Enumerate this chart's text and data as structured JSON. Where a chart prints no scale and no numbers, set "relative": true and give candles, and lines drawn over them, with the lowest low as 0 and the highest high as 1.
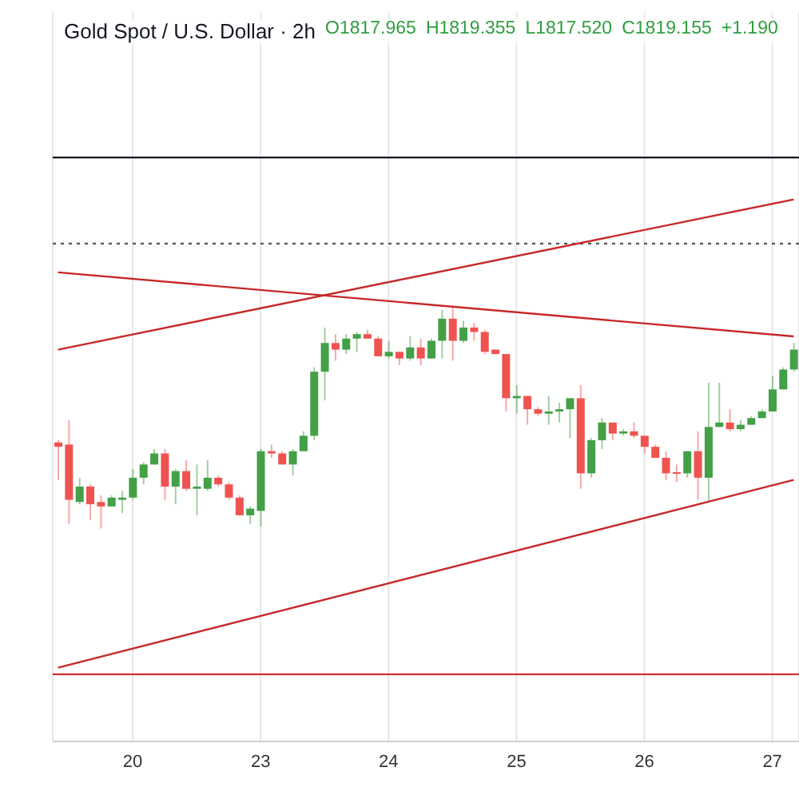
{
  "chart_data": {
    "type": "candlestick",
    "title": "Gold Spot / U.S. Dollar · 2h",
    "annotations": [
      "O1817.965",
      "H1819.355",
      "L1817.520",
      "C1819.155",
      "+1.190"
    ],
    "relative": true,
    "grid": "x",
    "categories": [
      null,
      null,
      null,
      null,
      null,
      null,
      null,
      "20",
      null,
      null,
      null,
      null,
      null,
      null,
      null,
      null,
      null,
      null,
      null,
      "23",
      null,
      null,
      null,
      null,
      null,
      null,
      null,
      null,
      null,
      null,
      null,
      "24",
      null,
      null,
      null,
      null,
      null,
      null,
      null,
      null,
      null,
      null,
      null,
      "25",
      null,
      null,
      null,
      null,
      null,
      null,
      null,
      null,
      null,
      null,
      null,
      "26",
      null,
      null,
      null,
      null,
      null,
      null,
      null,
      null,
      null,
      null,
      null,
      "27",
      null,
      null
    ],
    "ohlc": [
      [
        0.39,
        0.4,
        0.22,
        0.37
      ],
      [
        0.38,
        0.49,
        0.02,
        0.13
      ],
      [
        0.12,
        0.23,
        0.11,
        0.19
      ],
      [
        0.19,
        0.2,
        0.04,
        0.11
      ],
      [
        0.12,
        0.15,
        0,
        0.1
      ],
      [
        0.1,
        0.15,
        0.1,
        0.14
      ],
      [
        0.13,
        0.17,
        0.07,
        0.14
      ],
      [
        0.14,
        0.27,
        0.13,
        0.23
      ],
      [
        0.23,
        0.3,
        0.2,
        0.29
      ],
      [
        0.29,
        0.36,
        0.29,
        0.34
      ],
      [
        0.34,
        0.36,
        0.13,
        0.19
      ],
      [
        0.19,
        0.27,
        0.11,
        0.26
      ],
      [
        0.26,
        0.31,
        0.17,
        0.18
      ],
      [
        0.18,
        0.29,
        0.06,
        0.19
      ],
      [
        0.18,
        0.31,
        0.17,
        0.23
      ],
      [
        0.23,
        0.24,
        0.19,
        0.2
      ],
      [
        0.2,
        0.21,
        0.13,
        0.14
      ],
      [
        0.14,
        0.15,
        0.06,
        0.06
      ],
      [
        0.06,
        0.1,
        0.02,
        0.09
      ],
      [
        0.08,
        0.36,
        0.01,
        0.35
      ],
      [
        0.35,
        0.38,
        0.32,
        0.34
      ],
      [
        0.34,
        0.35,
        0.29,
        0.29
      ],
      [
        0.29,
        0.36,
        0.24,
        0.35
      ],
      [
        0.35,
        0.44,
        0.35,
        0.42
      ],
      [
        0.42,
        0.73,
        0.4,
        0.71
      ],
      [
        0.71,
        0.91,
        0.58,
        0.84
      ],
      [
        0.84,
        0.88,
        0.76,
        0.81
      ],
      [
        0.81,
        0.88,
        0.79,
        0.86
      ],
      [
        0.86,
        0.89,
        0.8,
        0.88
      ],
      [
        0.88,
        0.9,
        0.86,
        0.86
      ],
      [
        0.86,
        0.87,
        0.78,
        0.78
      ],
      [
        0.78,
        0.85,
        0.77,
        0.8
      ],
      [
        0.8,
        0.8,
        0.74,
        0.77
      ],
      [
        0.77,
        0.87,
        0.76,
        0.82
      ],
      [
        0.82,
        0.86,
        0.74,
        0.77
      ],
      [
        0.77,
        0.86,
        0.77,
        0.85
      ],
      [
        0.85,
        0.99,
        0.77,
        0.95
      ],
      [
        0.95,
        1,
        0.76,
        0.85
      ],
      [
        0.85,
        0.94,
        0.84,
        0.91
      ],
      [
        0.91,
        0.93,
        0.85,
        0.89
      ],
      [
        0.89,
        0.9,
        0.79,
        0.8
      ],
      [
        0.81,
        0.81,
        0.79,
        0.79
      ],
      [
        0.79,
        0.79,
        0.53,
        0.59
      ],
      [
        0.59,
        0.65,
        0.52,
        0.6
      ],
      [
        0.6,
        0.6,
        0.47,
        0.54
      ],
      [
        0.54,
        0.55,
        0.51,
        0.52
      ],
      [
        0.52,
        0.6,
        0.47,
        0.53
      ],
      [
        0.53,
        0.57,
        0.48,
        0.54
      ],
      [
        0.54,
        0.59,
        0.41,
        0.59
      ],
      [
        0.59,
        0.65,
        0.18,
        0.25
      ],
      [
        0.25,
        0.41,
        0.23,
        0.4
      ],
      [
        0.4,
        0.5,
        0.36,
        0.48
      ],
      [
        0.48,
        0.48,
        0.4,
        0.43
      ],
      [
        0.43,
        0.45,
        0.42,
        0.44
      ],
      [
        0.44,
        0.48,
        0.41,
        0.42
      ],
      [
        0.42,
        0.42,
        0.34,
        0.37
      ],
      [
        0.37,
        0.38,
        0.32,
        0.32
      ],
      [
        0.32,
        0.35,
        0.22,
        0.25
      ],
      [
        0.255,
        0.29,
        0.21,
        0.25
      ],
      [
        0.25,
        0.35,
        0.23,
        0.35
      ],
      [
        0.35,
        0.44,
        0.13,
        0.23
      ],
      [
        0.23,
        0.66,
        0.12,
        0.46
      ],
      [
        0.46,
        0.66,
        0.46,
        0.48
      ],
      [
        0.48,
        0.54,
        0.44,
        0.45
      ],
      [
        0.45,
        0.49,
        0.44,
        0.47
      ],
      [
        0.47,
        0.51,
        0.47,
        0.5
      ],
      [
        0.5,
        0.54,
        0.5,
        0.53
      ],
      [
        0.53,
        0.69,
        0.53,
        0.63
      ],
      [
        0.63,
        0.73,
        0.63,
        0.72
      ],
      [
        0.72,
        0.84,
        0.71,
        0.81
      ]
    ],
    "colors": [
      "#ef5350",
      "#ef5350",
      "#43a047",
      "#ef5350",
      "#ef5350",
      "#43a047",
      "#43a047",
      "#43a047",
      "#43a047",
      "#43a047",
      "#ef5350",
      "#43a047",
      "#ef5350",
      "#43a047",
      "#43a047",
      "#ef5350",
      "#ef5350",
      "#ef5350",
      "#43a047",
      "#43a047",
      "#ef5350",
      "#ef5350",
      "#43a047",
      "#43a047",
      "#43a047",
      "#43a047",
      "#ef5350",
      "#43a047",
      "#43a047",
      "#ef5350",
      "#ef5350",
      "#43a047",
      "#ef5350",
      "#43a047",
      "#ef5350",
      "#43a047",
      "#43a047",
      "#ef5350",
      "#43a047",
      "#ef5350",
      "#ef5350",
      "#ef5350",
      "#ef5350",
      "#43a047",
      "#ef5350",
      "#ef5350",
      "#43a047",
      "#43a047",
      "#43a047",
      "#ef5350",
      "#43a047",
      "#43a047",
      "#ef5350",
      "#43a047",
      "#ef5350",
      "#ef5350",
      "#ef5350",
      "#ef5350",
      "#ef5350",
      "#43a047",
      "#ef5350",
      "#43a047",
      "#43a047",
      "#ef5350",
      "#43a047",
      "#43a047",
      "#43a047",
      "#43a047",
      "#43a047",
      "#43a047"
    ],
    "series": [
      {
        "type": "line",
        "color": "#c62828",
        "values": [
          1.16,
          null,
          null,
          null,
          null,
          null,
          null,
          null,
          null,
          null,
          null,
          null,
          null,
          null,
          null,
          null,
          null,
          null,
          null,
          null,
          null,
          null,
          null,
          null,
          null,
          null,
          null,
          null,
          null,
          null,
          null,
          null,
          null,
          null,
          null,
          null,
          null,
          null,
          null,
          null,
          null,
          null,
          null,
          null,
          null,
          null,
          null,
          null,
          null,
          null,
          null,
          null,
          null,
          null,
          null,
          null,
          null,
          null,
          null,
          null,
          null,
          null,
          null,
          null,
          null,
          null,
          null,
          null,
          null,
          0.87
        ]
      },
      {
        "type": "line",
        "color": "#c62828",
        "values": [
          0.81,
          null,
          null,
          null,
          null,
          null,
          null,
          null,
          null,
          null,
          null,
          null,
          null,
          null,
          null,
          null,
          null,
          null,
          null,
          null,
          null,
          null,
          null,
          null,
          null,
          null,
          null,
          null,
          null,
          null,
          null,
          null,
          null,
          null,
          null,
          null,
          null,
          null,
          null,
          null,
          null,
          null,
          null,
          null,
          null,
          null,
          null,
          null,
          null,
          null,
          null,
          null,
          null,
          null,
          null,
          null,
          null,
          null,
          null,
          null,
          null,
          null,
          null,
          null,
          null,
          null,
          null,
          null,
          null,
          1.49
        ]
      },
      {
        "type": "line",
        "color": "#c62828",
        "values": [
          -0.63,
          null,
          null,
          null,
          null,
          null,
          null,
          null,
          null,
          null,
          null,
          null,
          null,
          null,
          null,
          null,
          null,
          null,
          null,
          null,
          null,
          null,
          null,
          null,
          null,
          null,
          null,
          null,
          null,
          null,
          null,
          null,
          null,
          null,
          null,
          null,
          null,
          null,
          null,
          null,
          null,
          null,
          null,
          null,
          null,
          null,
          null,
          null,
          null,
          null,
          null,
          null,
          null,
          null,
          null,
          null,
          null,
          null,
          null,
          null,
          null,
          null,
          null,
          null,
          null,
          null,
          null,
          null,
          null,
          0.22
        ]
      }
    ],
    "ref_lines": [
      {
        "axis": "y",
        "value": 1.68,
        "color": "#131722"
      },
      {
        "axis": "y",
        "value": 1.29,
        "color": "#555555",
        "line_style": "dotted"
      },
      {
        "axis": "y",
        "value": -0.66,
        "color": "#d32f2f"
      }
    ]
  }
}
